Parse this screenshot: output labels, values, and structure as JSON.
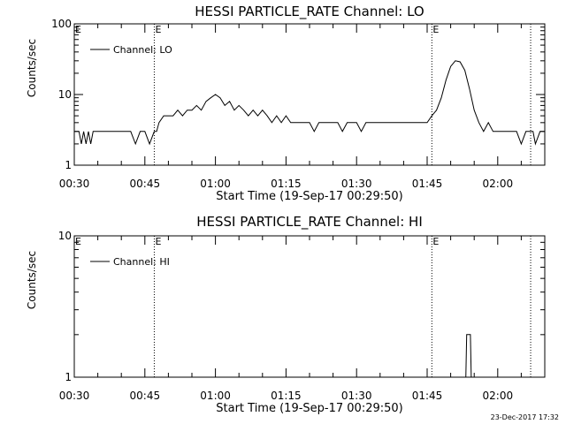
{
  "footer": {
    "timestamp": "23-Dec-2017 17:32"
  },
  "chart_data": [
    {
      "type": "line",
      "title": "HESSI PARTICLE_RATE Channel: LO",
      "xlabel": "Start Time (19-Sep-17 00:29:50)",
      "ylabel": "Counts/sec",
      "x_unit": "minutes after 00:30",
      "xlim": [
        0,
        100
      ],
      "ylim": [
        1,
        100
      ],
      "yscale": "log",
      "x_ticks": [
        "00:30",
        "00:45",
        "01:00",
        "01:15",
        "01:30",
        "01:45",
        "02:00"
      ],
      "y_ticks": [
        "1",
        "10",
        "100"
      ],
      "legend": {
        "placement": "top-left",
        "entries": [
          "Channel: LO"
        ]
      },
      "event_lines": [
        {
          "time": "00:47",
          "label": "E"
        },
        {
          "time": "01:46",
          "label": "E"
        },
        {
          "time": "02:07",
          "label": ""
        }
      ],
      "series": [
        {
          "name": "Channel: LO",
          "x": [
            0,
            1,
            1.5,
            2,
            2.5,
            3,
            3.5,
            4,
            5,
            6,
            7,
            8,
            9,
            10,
            11,
            12,
            13,
            14,
            15,
            16,
            17,
            17.5,
            18,
            19,
            20,
            21,
            22,
            23,
            24,
            25,
            26,
            27,
            28,
            29,
            30,
            31,
            32,
            33,
            34,
            35,
            36,
            37,
            38,
            39,
            40,
            41,
            42,
            43,
            44,
            45,
            46,
            47,
            48,
            49,
            50,
            51,
            52,
            53,
            54,
            55,
            56,
            57,
            58,
            59,
            60,
            61,
            62,
            63,
            64,
            65,
            66,
            67,
            68,
            69,
            70,
            71,
            72,
            73,
            74,
            75,
            76,
            77,
            78,
            79,
            80,
            81,
            82,
            83,
            84,
            85,
            86,
            87,
            88,
            89,
            90,
            91,
            92,
            93,
            94,
            95,
            96,
            97,
            97.5,
            98,
            99,
            100
          ],
          "y": [
            3,
            3,
            2,
            3,
            2,
            3,
            2,
            3,
            3,
            3,
            3,
            3,
            3,
            3,
            3,
            3,
            2,
            3,
            3,
            2,
            3,
            3,
            4,
            5,
            5,
            5,
            6,
            5,
            6,
            6,
            7,
            6,
            8,
            9,
            10,
            9,
            7,
            8,
            6,
            7,
            6,
            5,
            6,
            5,
            6,
            5,
            4,
            5,
            4,
            5,
            4,
            4,
            4,
            4,
            4,
            3,
            4,
            4,
            4,
            4,
            4,
            3,
            4,
            4,
            4,
            3,
            4,
            4,
            4,
            4,
            4,
            4,
            4,
            4,
            4,
            4,
            4,
            4,
            4,
            4,
            5,
            6,
            9,
            16,
            25,
            30,
            29,
            22,
            12,
            6,
            4,
            3,
            4,
            3,
            3,
            3,
            3,
            3,
            3,
            2,
            3,
            3,
            3,
            2,
            3,
            3
          ]
        }
      ]
    },
    {
      "type": "line",
      "title": "HESSI PARTICLE_RATE Channel: HI",
      "xlabel": "Start Time (19-Sep-17 00:29:50)",
      "ylabel": "Counts/sec",
      "x_unit": "minutes after 00:30",
      "xlim": [
        0,
        100
      ],
      "ylim": [
        1,
        10
      ],
      "yscale": "log",
      "x_ticks": [
        "00:30",
        "00:45",
        "01:00",
        "01:15",
        "01:30",
        "01:45",
        "02:00"
      ],
      "y_ticks": [
        "1",
        "10"
      ],
      "legend": {
        "placement": "top-left",
        "entries": [
          "Channel: HI"
        ]
      },
      "event_lines": [
        {
          "time": "00:47",
          "label": "E"
        },
        {
          "time": "01:46",
          "label": "E"
        },
        {
          "time": "02:07",
          "label": ""
        }
      ],
      "series": [
        {
          "name": "Channel: HI",
          "x": [
            0,
            10,
            20,
            30,
            40,
            50,
            60,
            70,
            80,
            83.2,
            83.4,
            83.8,
            84.2,
            84.4,
            90,
            100
          ],
          "y": [
            0.9,
            0.9,
            0.9,
            0.9,
            0.9,
            0.9,
            0.9,
            0.9,
            0.9,
            0.9,
            2,
            2,
            2,
            0.9,
            0.9,
            0.9
          ]
        }
      ]
    }
  ]
}
